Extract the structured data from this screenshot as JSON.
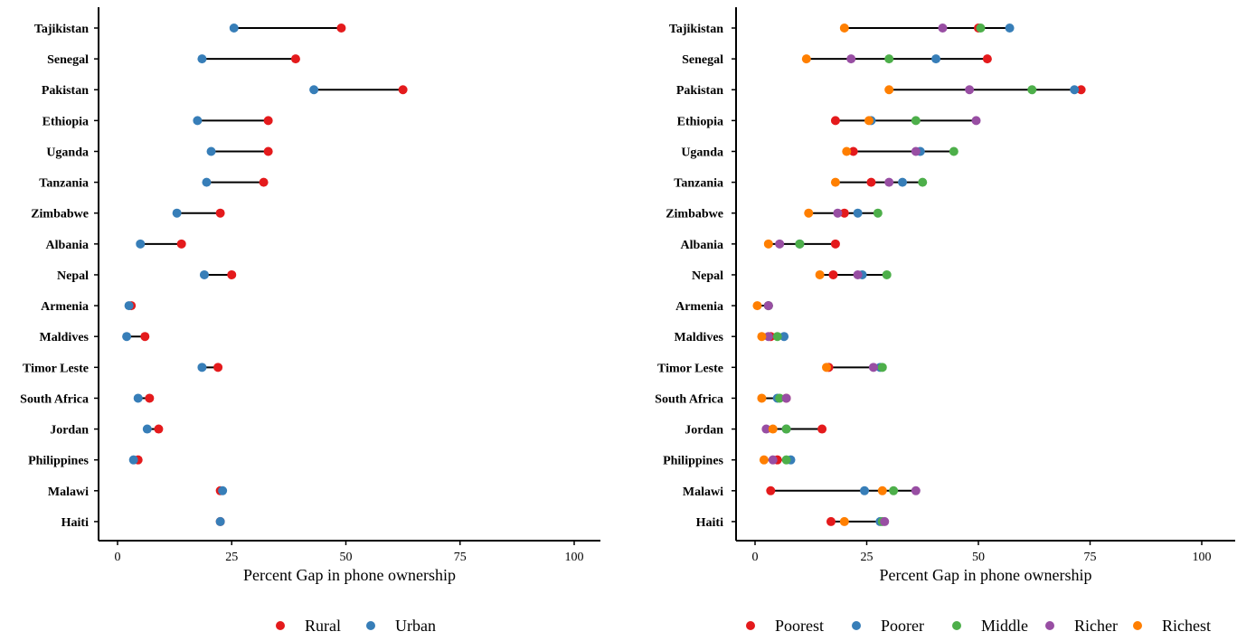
{
  "colors": {
    "Rural": "#e41a1c",
    "Urban": "#377eb8",
    "Poorest": "#e41a1c",
    "Poorer": "#377eb8",
    "Middle": "#4daf4a",
    "Richer": "#984ea3",
    "Richest": "#ff7f00"
  },
  "chart_data": [
    {
      "type": "scatter",
      "subtype": "dumbbell",
      "title": "",
      "xlabel": "Percent Gap in phone ownership",
      "ylabel": "",
      "xlim": [
        -5,
        105
      ],
      "xticks": [
        0,
        25,
        50,
        75,
        100
      ],
      "grid": false,
      "legend": {
        "position": "bottom",
        "entries": [
          "Rural",
          "Urban"
        ]
      },
      "categories": [
        "Tajikistan",
        "Senegal",
        "Pakistan",
        "Ethiopia",
        "Uganda",
        "Tanzania",
        "Zimbabwe",
        "Albania",
        "Nepal",
        "Armenia",
        "Maldives",
        "Timor Leste",
        "South Africa",
        "Jordan",
        "Philippines",
        "Malawi",
        "Haiti"
      ],
      "series": [
        {
          "name": "Rural",
          "values": [
            49,
            39,
            62.5,
            33,
            33,
            32,
            22.5,
            14,
            25,
            3,
            6,
            22,
            7,
            9,
            4.5,
            22.5,
            22.5
          ]
        },
        {
          "name": "Urban",
          "values": [
            25.5,
            18.5,
            43,
            17.5,
            20.5,
            19.5,
            13,
            5,
            19,
            2.5,
            2,
            18.5,
            4.5,
            6.5,
            3.5,
            23,
            22.5
          ]
        }
      ]
    },
    {
      "type": "scatter",
      "subtype": "dumbbell",
      "title": "",
      "xlabel": "Percent Gap in phone ownership",
      "ylabel": "",
      "xlim": [
        -5,
        105
      ],
      "xticks": [
        0,
        25,
        50,
        75,
        100
      ],
      "grid": false,
      "legend": {
        "position": "bottom",
        "entries": [
          "Poorest",
          "Poorer",
          "Middle",
          "Richer",
          "Richest"
        ]
      },
      "categories": [
        "Tajikistan",
        "Senegal",
        "Pakistan",
        "Ethiopia",
        "Uganda",
        "Tanzania",
        "Zimbabwe",
        "Albania",
        "Nepal",
        "Armenia",
        "Maldives",
        "Timor Leste",
        "South Africa",
        "Jordan",
        "Philippines",
        "Malawi",
        "Haiti"
      ],
      "series": [
        {
          "name": "Poorest",
          "values": [
            50,
            52,
            73,
            18,
            22,
            26,
            20,
            18,
            17.5,
            3,
            3.5,
            16.5,
            7,
            15,
            5,
            3.5,
            17
          ]
        },
        {
          "name": "Poorer",
          "values": [
            57,
            40.5,
            71.5,
            26,
            37,
            33,
            23,
            10,
            24,
            3,
            6.5,
            28,
            5,
            7,
            8,
            24.5,
            28
          ]
        },
        {
          "name": "Middle",
          "values": [
            50.5,
            30,
            62,
            36,
            44.5,
            37.5,
            27.5,
            10,
            29.5,
            3,
            5,
            28.5,
            5.5,
            7,
            7,
            31,
            28.5
          ]
        },
        {
          "name": "Richer",
          "values": [
            42,
            21.5,
            48,
            49.5,
            36,
            30,
            18.5,
            5.5,
            23,
            3,
            3,
            26.5,
            7,
            2.5,
            4,
            36,
            29
          ]
        },
        {
          "name": "Richest",
          "values": [
            20,
            11.5,
            30,
            25.5,
            20.5,
            18,
            12,
            3,
            14.5,
            0.5,
            1.5,
            16,
            1.5,
            4,
            2,
            28.5,
            20
          ]
        }
      ]
    }
  ]
}
